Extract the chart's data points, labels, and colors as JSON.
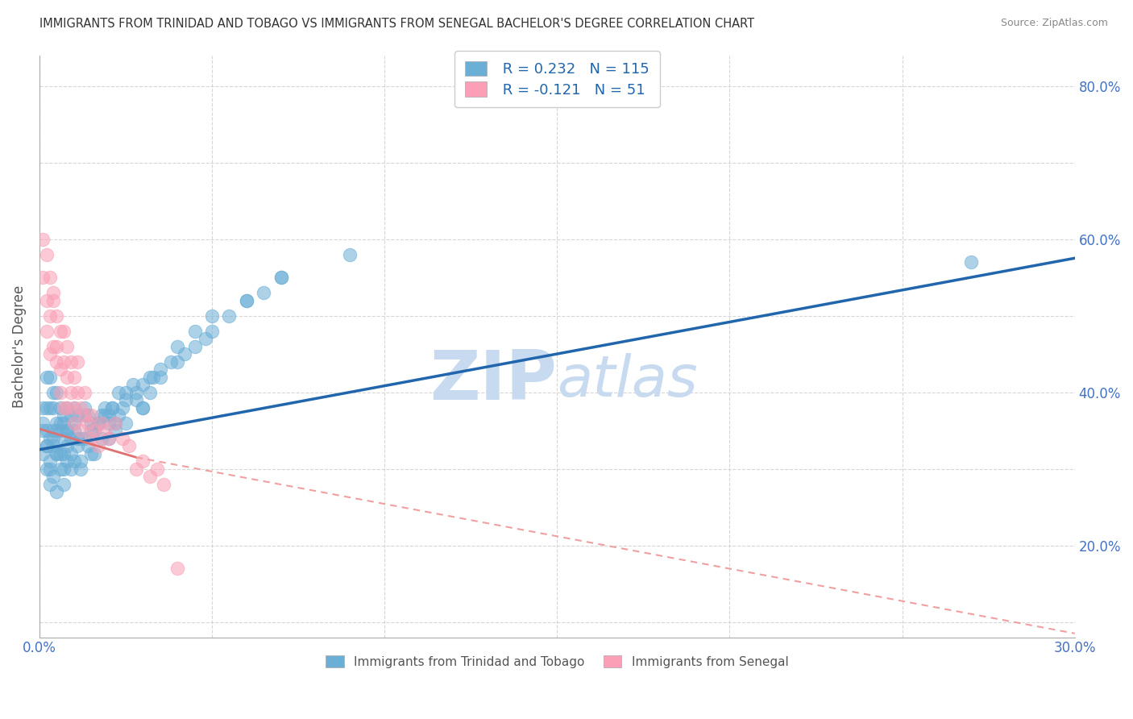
{
  "title": "IMMIGRANTS FROM TRINIDAD AND TOBAGO VS IMMIGRANTS FROM SENEGAL BACHELOR'S DEGREE CORRELATION CHART",
  "source": "Source: ZipAtlas.com",
  "ylabel": "Bachelor's Degree",
  "R_tt": 0.232,
  "N_tt": 115,
  "R_sn": -0.121,
  "N_sn": 51,
  "xlim": [
    0.0,
    0.3
  ],
  "ylim": [
    0.08,
    0.84
  ],
  "color_tt": "#6baed6",
  "color_sn": "#fa9fb5",
  "trendline_tt_color": "#2166ac",
  "trendline_sn_solid_color": "#e07070",
  "trendline_sn_dash_color": "#f0a0a0",
  "watermark_color": "#c8daf0",
  "legend_color": "#2166ac",
  "tt_x": [
    0.001,
    0.001,
    0.001,
    0.002,
    0.002,
    0.002,
    0.002,
    0.002,
    0.003,
    0.003,
    0.003,
    0.003,
    0.003,
    0.004,
    0.004,
    0.004,
    0.004,
    0.004,
    0.005,
    0.005,
    0.005,
    0.005,
    0.005,
    0.006,
    0.006,
    0.006,
    0.006,
    0.007,
    0.007,
    0.007,
    0.007,
    0.007,
    0.008,
    0.008,
    0.008,
    0.008,
    0.009,
    0.009,
    0.009,
    0.01,
    0.01,
    0.01,
    0.011,
    0.011,
    0.012,
    0.012,
    0.013,
    0.013,
    0.014,
    0.015,
    0.015,
    0.016,
    0.017,
    0.018,
    0.019,
    0.02,
    0.02,
    0.021,
    0.022,
    0.023,
    0.024,
    0.025,
    0.025,
    0.027,
    0.028,
    0.03,
    0.03,
    0.032,
    0.033,
    0.035,
    0.038,
    0.04,
    0.042,
    0.045,
    0.048,
    0.05,
    0.055,
    0.06,
    0.065,
    0.07,
    0.001,
    0.002,
    0.003,
    0.004,
    0.005,
    0.006,
    0.007,
    0.008,
    0.009,
    0.01,
    0.011,
    0.012,
    0.013,
    0.014,
    0.015,
    0.016,
    0.017,
    0.018,
    0.019,
    0.02,
    0.021,
    0.022,
    0.023,
    0.025,
    0.028,
    0.03,
    0.032,
    0.035,
    0.04,
    0.045,
    0.05,
    0.06,
    0.07,
    0.09,
    0.27
  ],
  "tt_y": [
    0.35,
    0.38,
    0.32,
    0.3,
    0.35,
    0.38,
    0.42,
    0.33,
    0.28,
    0.34,
    0.38,
    0.42,
    0.31,
    0.29,
    0.35,
    0.38,
    0.33,
    0.4,
    0.27,
    0.32,
    0.36,
    0.4,
    0.35,
    0.3,
    0.35,
    0.38,
    0.32,
    0.28,
    0.34,
    0.37,
    0.32,
    0.36,
    0.31,
    0.35,
    0.38,
    0.33,
    0.3,
    0.34,
    0.37,
    0.31,
    0.35,
    0.38,
    0.33,
    0.37,
    0.3,
    0.34,
    0.34,
    0.38,
    0.37,
    0.32,
    0.36,
    0.35,
    0.36,
    0.37,
    0.38,
    0.34,
    0.37,
    0.38,
    0.36,
    0.4,
    0.38,
    0.36,
    0.4,
    0.41,
    0.39,
    0.38,
    0.41,
    0.4,
    0.42,
    0.42,
    0.44,
    0.44,
    0.45,
    0.46,
    0.47,
    0.48,
    0.5,
    0.52,
    0.53,
    0.55,
    0.36,
    0.33,
    0.3,
    0.34,
    0.32,
    0.36,
    0.3,
    0.35,
    0.32,
    0.36,
    0.34,
    0.31,
    0.37,
    0.33,
    0.35,
    0.32,
    0.36,
    0.34,
    0.37,
    0.36,
    0.38,
    0.35,
    0.37,
    0.39,
    0.4,
    0.38,
    0.42,
    0.43,
    0.46,
    0.48,
    0.5,
    0.52,
    0.55,
    0.58,
    0.57
  ],
  "sn_x": [
    0.001,
    0.001,
    0.002,
    0.002,
    0.002,
    0.003,
    0.003,
    0.003,
    0.004,
    0.004,
    0.004,
    0.005,
    0.005,
    0.005,
    0.006,
    0.006,
    0.006,
    0.007,
    0.007,
    0.007,
    0.008,
    0.008,
    0.008,
    0.009,
    0.009,
    0.01,
    0.01,
    0.01,
    0.011,
    0.011,
    0.012,
    0.012,
    0.013,
    0.013,
    0.014,
    0.015,
    0.015,
    0.016,
    0.017,
    0.018,
    0.019,
    0.02,
    0.022,
    0.024,
    0.026,
    0.028,
    0.03,
    0.032,
    0.034,
    0.036,
    0.04
  ],
  "sn_y": [
    0.6,
    0.55,
    0.52,
    0.58,
    0.48,
    0.5,
    0.55,
    0.45,
    0.52,
    0.46,
    0.53,
    0.44,
    0.5,
    0.46,
    0.43,
    0.48,
    0.4,
    0.44,
    0.48,
    0.38,
    0.42,
    0.46,
    0.38,
    0.4,
    0.44,
    0.38,
    0.42,
    0.36,
    0.4,
    0.44,
    0.38,
    0.35,
    0.37,
    0.4,
    0.36,
    0.34,
    0.37,
    0.35,
    0.33,
    0.36,
    0.35,
    0.34,
    0.36,
    0.34,
    0.33,
    0.3,
    0.31,
    0.29,
    0.3,
    0.28,
    0.17
  ],
  "trendline_tt_x0": 0.0,
  "trendline_tt_x1": 0.3,
  "trendline_tt_y0": 0.325,
  "trendline_tt_y1": 0.575,
  "trendline_sn_x0": 0.0,
  "trendline_sn_x1_solid": 0.028,
  "trendline_sn_x1_dash": 0.3,
  "trendline_sn_y0": 0.352,
  "trendline_sn_y1_solid": 0.315,
  "trendline_sn_y1_dash": 0.085
}
